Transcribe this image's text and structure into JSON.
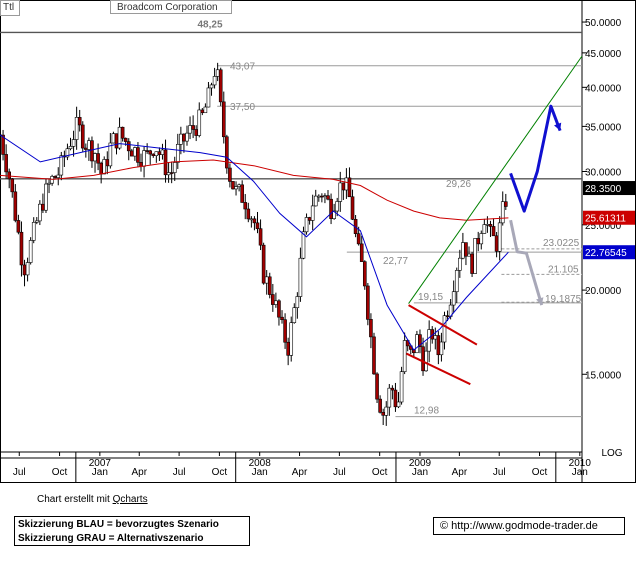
{
  "header": {
    "ticker": "Ttl",
    "title": "Broadcom Corporation"
  },
  "chart_data": {
    "type": "candlestick",
    "title": "Broadcom Corporation",
    "y_scale": "log",
    "y_scale_label": "LOG",
    "ylim": [
      11.5,
      53
    ],
    "y_ticks": [
      "15.0000",
      "20.0000",
      "25.0000",
      "30.0000",
      "35.0000",
      "40.0000",
      "45.0000",
      "50.0000"
    ],
    "x_range": [
      "2006-06-01",
      "2010-01-20"
    ],
    "x_ticks": [
      {
        "date": "2006-07-15",
        "label": "Jul"
      },
      {
        "date": "2006-10-15",
        "label": "Oct"
      },
      {
        "date": "2007-01-15",
        "label": "Jan",
        "year": "2007"
      },
      {
        "date": "2007-04-15",
        "label": "Apr"
      },
      {
        "date": "2007-07-15",
        "label": "Jul"
      },
      {
        "date": "2007-10-15",
        "label": "Oct"
      },
      {
        "date": "2008-01-15",
        "label": "Jan",
        "year": "2008"
      },
      {
        "date": "2008-04-15",
        "label": "Apr"
      },
      {
        "date": "2008-07-15",
        "label": "Jul"
      },
      {
        "date": "2008-10-15",
        "label": "Oct"
      },
      {
        "date": "2009-01-15",
        "label": "Jan",
        "year": "2009"
      },
      {
        "date": "2009-04-15",
        "label": "Apr"
      },
      {
        "date": "2009-07-15",
        "label": "Jul"
      },
      {
        "date": "2009-10-15",
        "label": "Oct"
      },
      {
        "date": "2010-01-15",
        "label": "Jan",
        "year": "2010"
      }
    ],
    "price_path": [
      [
        "2006-06-01",
        34
      ],
      [
        "2006-06-20",
        30
      ],
      [
        "2006-07-10",
        25
      ],
      [
        "2006-07-25",
        21.5
      ],
      [
        "2006-08-15",
        24
      ],
      [
        "2006-09-05",
        27
      ],
      [
        "2006-09-25",
        29
      ],
      [
        "2006-10-15",
        30
      ],
      [
        "2006-11-05",
        33
      ],
      [
        "2006-11-25",
        35
      ],
      [
        "2006-12-15",
        33
      ],
      [
        "2007-01-05",
        32
      ],
      [
        "2007-01-20",
        29.5
      ],
      [
        "2007-02-10",
        33
      ],
      [
        "2007-03-01",
        34
      ],
      [
        "2007-03-20",
        33
      ],
      [
        "2007-04-10",
        32
      ],
      [
        "2007-05-01",
        31.5
      ],
      [
        "2007-05-20",
        33
      ],
      [
        "2007-06-10",
        31
      ],
      [
        "2007-06-25",
        29.5
      ],
      [
        "2007-07-10",
        32
      ],
      [
        "2007-08-01",
        34
      ],
      [
        "2007-08-20",
        35
      ],
      [
        "2007-09-05",
        36
      ],
      [
        "2007-09-20",
        38.5
      ],
      [
        "2007-10-01",
        42
      ],
      [
        "2007-10-08",
        43
      ],
      [
        "2007-10-20",
        36
      ],
      [
        "2007-11-05",
        30
      ],
      [
        "2007-11-20",
        28
      ],
      [
        "2007-12-10",
        27.5
      ],
      [
        "2008-01-05",
        25
      ],
      [
        "2008-01-25",
        21
      ],
      [
        "2008-02-15",
        19.5
      ],
      [
        "2008-03-05",
        17.5
      ],
      [
        "2008-03-20",
        16.5
      ],
      [
        "2008-04-05",
        19
      ],
      [
        "2008-04-25",
        24
      ],
      [
        "2008-05-15",
        27
      ],
      [
        "2008-06-05",
        28
      ],
      [
        "2008-06-25",
        26.5
      ],
      [
        "2008-07-10",
        28
      ],
      [
        "2008-07-25",
        29
      ],
      [
        "2008-08-10",
        27
      ],
      [
        "2008-08-25",
        23
      ],
      [
        "2008-09-10",
        21
      ],
      [
        "2008-09-25",
        17
      ],
      [
        "2008-10-10",
        14
      ],
      [
        "2008-10-25",
        13
      ],
      [
        "2008-11-10",
        14.5
      ],
      [
        "2008-11-25",
        13.3
      ],
      [
        "2008-12-10",
        16.5
      ],
      [
        "2008-12-25",
        16
      ],
      [
        "2009-01-10",
        17
      ],
      [
        "2009-01-25",
        15.5
      ],
      [
        "2009-02-10",
        17.5
      ],
      [
        "2009-02-25",
        16
      ],
      [
        "2009-03-10",
        18
      ],
      [
        "2009-03-25",
        19.5
      ],
      [
        "2009-04-10",
        22
      ],
      [
        "2009-04-25",
        24
      ],
      [
        "2009-05-10",
        21.5
      ],
      [
        "2009-05-25",
        23.5
      ],
      [
        "2009-06-10",
        26
      ],
      [
        "2009-06-25",
        24
      ],
      [
        "2009-07-10",
        23.5
      ],
      [
        "2009-07-25",
        26.5
      ],
      [
        "2009-08-05",
        28.35
      ]
    ],
    "moving_averages": [
      {
        "color": "#cc0000",
        "points": [
          [
            "2006-06-01",
            29.6
          ],
          [
            "2006-10-01",
            29.2
          ],
          [
            "2007-01-01",
            29.6
          ],
          [
            "2007-04-01",
            30.4
          ],
          [
            "2007-07-01",
            31.0
          ],
          [
            "2007-10-01",
            31.2
          ],
          [
            "2008-01-01",
            30.6
          ],
          [
            "2008-04-01",
            29.6
          ],
          [
            "2008-07-01",
            29.2
          ],
          [
            "2008-09-01",
            28.6
          ],
          [
            "2008-11-01",
            27.2
          ],
          [
            "2009-01-01",
            26.2
          ],
          [
            "2009-03-01",
            25.6
          ],
          [
            "2009-05-01",
            25.4
          ],
          [
            "2009-08-05",
            25.6
          ]
        ]
      },
      {
        "color": "#0000cc",
        "points": [
          [
            "2006-06-01",
            34
          ],
          [
            "2006-09-01",
            31
          ],
          [
            "2006-12-01",
            32
          ],
          [
            "2007-03-01",
            33
          ],
          [
            "2007-06-01",
            32.5
          ],
          [
            "2007-09-01",
            32
          ],
          [
            "2007-11-01",
            31.5
          ],
          [
            "2008-01-01",
            29
          ],
          [
            "2008-03-01",
            26
          ],
          [
            "2008-05-01",
            24
          ],
          [
            "2008-07-01",
            26.2
          ],
          [
            "2008-09-01",
            24.5
          ],
          [
            "2008-11-01",
            19
          ],
          [
            "2009-01-01",
            16.3
          ],
          [
            "2009-03-01",
            17.5
          ],
          [
            "2009-05-01",
            19.5
          ],
          [
            "2009-08-05",
            22.77
          ]
        ]
      }
    ],
    "horizontal_levels": [
      {
        "value": 48.25,
        "label": "48,25",
        "from": "2006-06-01",
        "to": "2010-01-20"
      },
      {
        "value": 43.07,
        "label": "43,07",
        "from": "2007-10-10",
        "to": "2010-01-20"
      },
      {
        "value": 37.5,
        "label": "37,50",
        "from": "2007-10-10",
        "to": "2010-01-20"
      },
      {
        "value": 29.26,
        "label": "29,26",
        "from": "2006-06-01",
        "to": "2010-01-20"
      },
      {
        "value": 23.0225,
        "label": "23.0225",
        "from": "2009-07-20",
        "to": "2010-01-20",
        "dashed": true
      },
      {
        "value": 22.77,
        "label": "22,77",
        "from": "2008-08-01",
        "to": "2010-01-20"
      },
      {
        "value": 21.105,
        "label": "21.105",
        "from": "2009-07-20",
        "to": "2010-01-20",
        "dashed": true
      },
      {
        "value": 19.1875,
        "label": "19.1875",
        "from": "2009-07-20",
        "to": "2010-01-20",
        "dashed": true
      },
      {
        "value": 19.15,
        "label": "19,15",
        "from": "2009-01-01",
        "to": "2010-01-20"
      },
      {
        "value": 12.98,
        "label": "12,98",
        "from": "2008-11-20",
        "to": "2010-01-20"
      }
    ],
    "trendlines": [
      {
        "color": "#008000",
        "points": [
          [
            "2008-12-20",
            19.1
          ],
          [
            "2010-01-20",
            44.5
          ]
        ]
      },
      {
        "color": "#cc0000",
        "points": [
          [
            "2008-12-20",
            19.0
          ],
          [
            "2009-05-25",
            16.6
          ]
        ]
      },
      {
        "color": "#cc0000",
        "points": [
          [
            "2008-12-15",
            16.1
          ],
          [
            "2009-05-10",
            14.5
          ]
        ]
      }
    ],
    "scenario_blue": [
      [
        "2009-08-10",
        29.8
      ],
      [
        "2009-09-10",
        26.2
      ],
      [
        "2009-10-10",
        30.0
      ],
      [
        "2009-11-10",
        37.5
      ],
      [
        "2009-12-01",
        34.5
      ]
    ],
    "scenario_grey": [
      [
        "2009-08-10",
        25.4
      ],
      [
        "2009-08-25",
        22.8
      ],
      [
        "2009-09-15",
        22.7
      ],
      [
        "2009-10-20",
        19.0
      ]
    ],
    "price_tags": [
      {
        "value": 28.35,
        "label": "28.3500",
        "color": "#000000"
      },
      {
        "value": 25.61311,
        "label": "25.61311",
        "color": "#cc0000"
      },
      {
        "value": 22.76545,
        "label": "22.76545",
        "color": "#0000cc"
      }
    ]
  },
  "footer": {
    "credit_prefix": "Chart erstellt mit",
    "credit_link": "Qcharts",
    "legend_blue": "Skizzierung BLAU = bevorzugtes Szenario",
    "legend_grey": "Skizzierung GRAU = Alternativszenario",
    "source": "© http://www.godmode-trader.de"
  }
}
